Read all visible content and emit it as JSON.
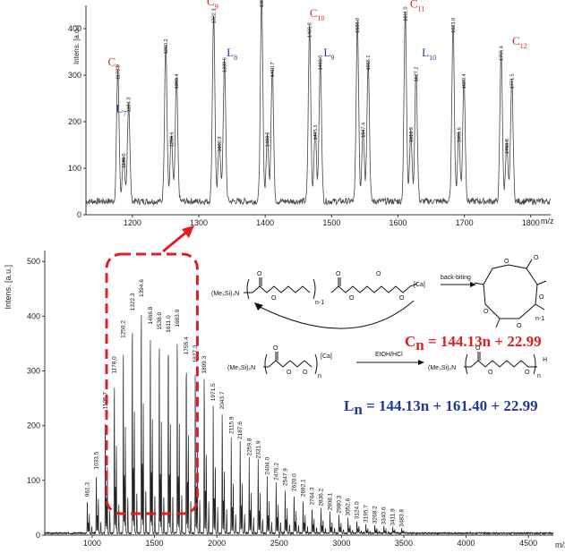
{
  "chart_data": [
    {
      "type": "line",
      "subtype": "mass-spectrum-zoom",
      "ylabel": "Intens. [a.u.]",
      "xlabel": "m/z",
      "xlim": [
        1130,
        1830
      ],
      "ylim": [
        0,
        450
      ],
      "xticks": [
        1200,
        1300,
        1400,
        1500,
        1600,
        1700,
        1800
      ],
      "yticks": [
        0,
        100,
        200,
        300,
        400
      ],
      "peaks": [
        {
          "x": 1178.0,
          "y": 285,
          "label": "1178.0"
        },
        {
          "x": 1194.3,
          "y": 215,
          "label": "1194.3"
        },
        {
          "x": 1186.5,
          "y": 95,
          "label": "1186.5"
        },
        {
          "x": 1250.2,
          "y": 340,
          "label": "1250.2"
        },
        {
          "x": 1266.4,
          "y": 265,
          "label": "1266.4"
        },
        {
          "x": 1258.6,
          "y": 140,
          "label": "1258.6"
        },
        {
          "x": 1322.3,
          "y": 405,
          "label": "1322.3"
        },
        {
          "x": 1338.6,
          "y": 300,
          "label": "1338.6"
        },
        {
          "x": 1330.9,
          "y": 130,
          "label": "1330.9"
        },
        {
          "x": 1394.6,
          "y": 440,
          "label": "1394.6"
        },
        {
          "x": 1410.7,
          "y": 290,
          "label": "1410.7"
        },
        {
          "x": 1403.2,
          "y": 140,
          "label": "1403.2"
        },
        {
          "x": 1466.8,
          "y": 375,
          "label": "1466.8"
        },
        {
          "x": 1483.0,
          "y": 305,
          "label": "1483.0"
        },
        {
          "x": 1475.3,
          "y": 155,
          "label": "1475.3"
        },
        {
          "x": 1538.9,
          "y": 385,
          "label": "1538.9"
        },
        {
          "x": 1555.1,
          "y": 305,
          "label": "1555.1"
        },
        {
          "x": 1547.4,
          "y": 160,
          "label": "1547.4"
        },
        {
          "x": 1611.0,
          "y": 410,
          "label": "1611.0"
        },
        {
          "x": 1627.2,
          "y": 280,
          "label": "1627.2"
        },
        {
          "x": 1619.3,
          "y": 150,
          "label": "1619.3"
        },
        {
          "x": 1683.0,
          "y": 385,
          "label": "1683.0"
        },
        {
          "x": 1699.4,
          "y": 265,
          "label": "1699.4"
        },
        {
          "x": 1691.6,
          "y": 150,
          "label": "1691.6"
        },
        {
          "x": 1755.4,
          "y": 325,
          "label": "1755.4"
        },
        {
          "x": 1771.5,
          "y": 265,
          "label": "1771.5"
        },
        {
          "x": 1763.8,
          "y": 125,
          "label": "1763.8"
        }
      ],
      "series_labels": [
        {
          "series": "C",
          "sub": "8",
          "x": 1163,
          "y": 320
        },
        {
          "series": "L",
          "sub": "7",
          "x": 1175,
          "y": 220
        },
        {
          "series": "C",
          "sub": "9",
          "x": 1312,
          "y": 450
        },
        {
          "series": "L",
          "sub": "8",
          "x": 1342,
          "y": 340
        },
        {
          "series": "C",
          "sub": "10",
          "x": 1467,
          "y": 425
        },
        {
          "series": "L",
          "sub": "9",
          "x": 1488,
          "y": 340
        },
        {
          "series": "C",
          "sub": "11",
          "x": 1618,
          "y": 445
        },
        {
          "series": "L",
          "sub": "10",
          "x": 1636,
          "y": 340
        },
        {
          "series": "C",
          "sub": "12",
          "x": 1772,
          "y": 365
        }
      ]
    },
    {
      "type": "line",
      "subtype": "mass-spectrum",
      "ylabel": "Intens. [a.u.]",
      "xlabel": "m/z",
      "xlim": [
        620,
        4700
      ],
      "ylim": [
        0,
        520
      ],
      "xticks": [
        1000,
        1500,
        2000,
        2500,
        3000,
        3500,
        4000,
        4500
      ],
      "yticks": [
        0,
        100,
        200,
        300,
        400,
        500
      ],
      "peaks": [
        {
          "x": 961.3,
          "y": 65,
          "label": "961.3"
        },
        {
          "x": 1033.5,
          "y": 115,
          "label": "1033.5"
        },
        {
          "x": 1105.7,
          "y": 225,
          "label": "1105.7"
        },
        {
          "x": 1178.0,
          "y": 290,
          "label": "1178.0"
        },
        {
          "x": 1250.2,
          "y": 355,
          "label": "1250.2"
        },
        {
          "x": 1322.3,
          "y": 405,
          "label": "1322.3"
        },
        {
          "x": 1394.6,
          "y": 430,
          "label": "1394.6"
        },
        {
          "x": 1466.8,
          "y": 380,
          "label": "1466.8"
        },
        {
          "x": 1538.9,
          "y": 370,
          "label": "1538.9"
        },
        {
          "x": 1611.0,
          "y": 365,
          "label": "1611.0"
        },
        {
          "x": 1683.0,
          "y": 375,
          "label": "1683.0"
        },
        {
          "x": 1755.4,
          "y": 325,
          "label": "1755.4"
        },
        {
          "x": 1827.3,
          "y": 310,
          "label": "1827.3"
        },
        {
          "x": 1899.3,
          "y": 290,
          "label": "1899.3"
        },
        {
          "x": 1971.5,
          "y": 240,
          "label": "1971.5"
        },
        {
          "x": 2043.7,
          "y": 225,
          "label": "2043.7"
        },
        {
          "x": 2115.9,
          "y": 180,
          "label": "2115.9"
        },
        {
          "x": 2187.6,
          "y": 170,
          "label": "2187.6"
        },
        {
          "x": 2259.8,
          "y": 140,
          "label": "2259.8"
        },
        {
          "x": 2331.9,
          "y": 135,
          "label": "2331.9"
        },
        {
          "x": 2404.0,
          "y": 105,
          "label": "2404.0"
        },
        {
          "x": 2476.2,
          "y": 95,
          "label": "2476.2"
        },
        {
          "x": 2547.9,
          "y": 85,
          "label": "2547.9"
        },
        {
          "x": 2620.0,
          "y": 75,
          "label": "2620.0"
        },
        {
          "x": 2692.1,
          "y": 65,
          "label": "2692.1"
        },
        {
          "x": 2764.3,
          "y": 50,
          "label": "2764.3"
        },
        {
          "x": 2836.2,
          "y": 48,
          "label": "2836.2"
        },
        {
          "x": 2908.1,
          "y": 40,
          "label": "2908.1"
        },
        {
          "x": 2980.3,
          "y": 35,
          "label": "2980.3"
        },
        {
          "x": 3052.6,
          "y": 30,
          "label": "3052.6"
        },
        {
          "x": 3124.0,
          "y": 24,
          "label": "3124.0"
        },
        {
          "x": 3195.7,
          "y": 18,
          "label": "3195.7"
        },
        {
          "x": 3268.2,
          "y": 16,
          "label": "3268.2"
        },
        {
          "x": 3340.6,
          "y": 14,
          "label": "3340.6"
        },
        {
          "x": 3411.9,
          "y": 12,
          "label": "3411.9"
        },
        {
          "x": 3483.8,
          "y": 10,
          "label": "3483.8"
        }
      ],
      "highlight_range": [
        1130,
        1830
      ]
    }
  ],
  "scheme": {
    "cyclic_initiator": "(Me₃Si)₂N",
    "metal": "[Ca]",
    "repeat_cyclic": "n-1",
    "back_biting": "back-biting",
    "cyclic_product_n": "n-1",
    "linear_initiator": "(Me₃Si)₂N",
    "repeat_linear": "n",
    "quench": "EtOH/HCl",
    "linear_end": "H",
    "formula_c": {
      "symbol": "C",
      "sub": "n",
      "text": " = 144.13n + 22.99"
    },
    "formula_l": {
      "symbol": "L",
      "sub": "n",
      "text": " = 144.13n + 161.40 + 22.99"
    }
  },
  "colors": {
    "red": "#e02020",
    "blue": "#1e3a9a",
    "trace": "#444444"
  }
}
